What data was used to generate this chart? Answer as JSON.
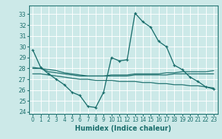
{
  "title": "",
  "xlabel": "Humidex (Indice chaleur)",
  "background_color": "#cce9e8",
  "grid_color": "#ffffff",
  "line_color": "#1a6e6c",
  "xlim": [
    -0.5,
    23.5
  ],
  "ylim": [
    23.8,
    33.8
  ],
  "yticks": [
    24,
    25,
    26,
    27,
    28,
    29,
    30,
    31,
    32,
    33
  ],
  "xticks": [
    0,
    1,
    2,
    3,
    4,
    5,
    6,
    7,
    8,
    9,
    10,
    11,
    12,
    13,
    14,
    15,
    16,
    17,
    18,
    19,
    20,
    21,
    22,
    23
  ],
  "series": [
    [
      29.7,
      28.1,
      27.5,
      27.0,
      26.5,
      25.8,
      25.5,
      24.5,
      24.4,
      25.8,
      29.0,
      28.7,
      28.8,
      33.1,
      32.3,
      31.8,
      30.5,
      30.0,
      28.3,
      27.9,
      27.2,
      26.8,
      26.3,
      26.1
    ],
    [
      28.0,
      28.0,
      27.7,
      27.6,
      27.5,
      27.4,
      27.3,
      27.3,
      27.3,
      27.3,
      27.4,
      27.4,
      27.4,
      27.5,
      27.5,
      27.5,
      27.5,
      27.6,
      27.6,
      27.7,
      27.7,
      27.7,
      27.7,
      27.8
    ],
    [
      27.5,
      27.5,
      27.4,
      27.3,
      27.2,
      27.1,
      27.0,
      27.0,
      26.9,
      26.9,
      26.9,
      26.8,
      26.8,
      26.8,
      26.7,
      26.7,
      26.6,
      26.6,
      26.5,
      26.5,
      26.4,
      26.4,
      26.3,
      26.2
    ],
    [
      28.1,
      28.0,
      27.9,
      27.8,
      27.6,
      27.5,
      27.4,
      27.3,
      27.3,
      27.3,
      27.3,
      27.3,
      27.3,
      27.4,
      27.4,
      27.4,
      27.4,
      27.4,
      27.5,
      27.5,
      27.5,
      27.5,
      27.5,
      27.5
    ]
  ]
}
